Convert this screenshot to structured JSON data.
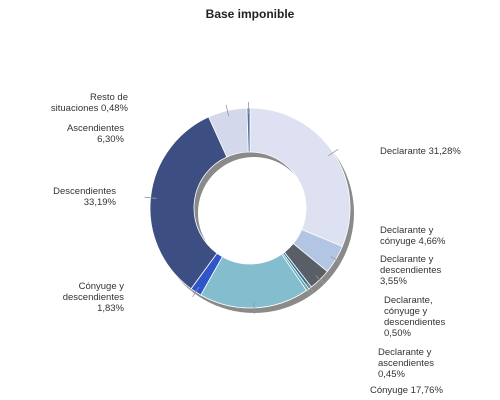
{
  "chart_data": {
    "type": "pie",
    "subtype": "donut",
    "title": "Base imponible",
    "legend": "none",
    "slices": [
      {
        "lines": [
          "Declarante 31,28%"
        ],
        "value": 31.28,
        "color": "#dde1f1"
      },
      {
        "lines": [
          "Declarante y",
          "cónyuge 4,66%"
        ],
        "value": 4.66,
        "color": "#b2c6e3"
      },
      {
        "lines": [
          "Declarante y",
          "descendientes",
          "3,55%"
        ],
        "value": 3.55,
        "color": "#5a5e66"
      },
      {
        "lines": [
          "Declarante,",
          "cónyuge y",
          "descendientes",
          "0,50%"
        ],
        "value": 0.5,
        "color": "#2d6f8f"
      },
      {
        "lines": [
          "Declarante y",
          "ascendientes",
          "0,45%"
        ],
        "value": 0.45,
        "color": "#5aa6bd"
      },
      {
        "lines": [
          "Cónyuge 17,76%"
        ],
        "value": 17.76,
        "color": "#84bdce"
      },
      {
        "lines": [
          "Cónyuge y",
          "descendientes",
          "1,83%"
        ],
        "value": 1.83,
        "color": "#2f55c8"
      },
      {
        "lines": [
          "Descendientes",
          "33,19%"
        ],
        "value": 33.19,
        "color": "#3d4f82"
      },
      {
        "lines": [
          "Ascendientes",
          "6,30%"
        ],
        "value": 6.3,
        "color": "#d3d8ea"
      },
      {
        "lines": [
          "Resto de",
          "situaciones 0,48%"
        ],
        "value": 0.48,
        "color": "#4c6fa6"
      }
    ]
  }
}
